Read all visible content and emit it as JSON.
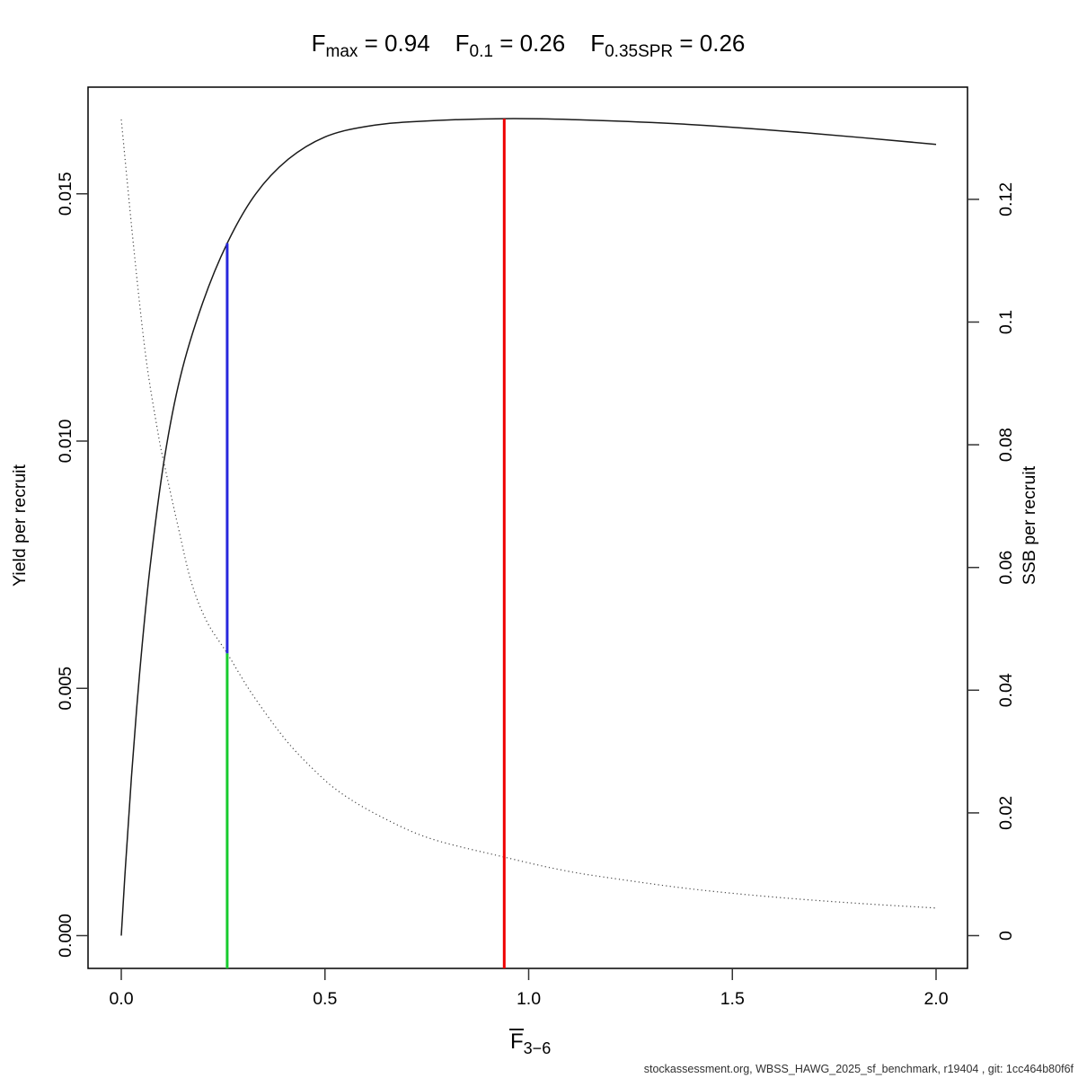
{
  "page": {
    "background": "#ffffff"
  },
  "title": {
    "parts": [
      {
        "base": "F",
        "sub": "max",
        "value": " = 0.94"
      },
      {
        "base": "F",
        "sub": "0.1",
        "value": " = 0.26"
      },
      {
        "base": "F",
        "sub": "0.35SPR",
        "value": " = 0.26"
      }
    ]
  },
  "xlabel": {
    "base": "F",
    "sub": "3−6"
  },
  "footer": {
    "text": "stockassessment.org, WBSS_HAWG_2025_sf_benchmark, r19404 , git: 1cc464b80f6f"
  },
  "chart_data": {
    "type": "line",
    "title": "Fmax = 0.94    F0.1 = 0.26    F0.35SPR = 0.26",
    "xlabel": "F̄3−6",
    "x_axis": {
      "min": 0,
      "max": 2,
      "ticks": [
        0,
        0.5,
        1.0,
        1.5,
        2.0
      ],
      "tick_labels": [
        "0.0",
        "0.5",
        "1.0",
        "1.5",
        "2.0"
      ]
    },
    "y_left": {
      "label": "Yield per recruit",
      "ticks": [
        0,
        0.005,
        0.01,
        0.015
      ],
      "tick_labels": [
        "0.000",
        "0.005",
        "0.010",
        "0.015"
      ],
      "range": [
        0,
        0.01652
      ]
    },
    "y_right": {
      "label": "SSB per recruit",
      "ticks": [
        0,
        0.02,
        0.04,
        0.06,
        0.08,
        0.1,
        0.12
      ],
      "tick_labels": [
        "0",
        "0.02",
        "0.04",
        "0.06",
        "0.08",
        "0.1",
        "0.12"
      ],
      "range": [
        0,
        0.133
      ]
    },
    "reference_points": {
      "Fmax": 0.94,
      "F0.1": 0.26,
      "F0.35SPR": 0.26
    },
    "series": [
      {
        "name": "Yield per recruit",
        "axis": "left",
        "line_style": "solid",
        "color": "#1a1a1a",
        "x": [
          0,
          0.01,
          0.025,
          0.045,
          0.07,
          0.105,
          0.145,
          0.2,
          0.26,
          0.33,
          0.41,
          0.5,
          0.6,
          0.72,
          0.94,
          1.15,
          1.4,
          1.7,
          2.0
        ],
        "y": [
          0,
          0.00135,
          0.0032,
          0.0053,
          0.0074,
          0.0096,
          0.0113,
          0.0128,
          0.014,
          0.015,
          0.0157,
          0.01615,
          0.01636,
          0.01646,
          0.01652,
          0.01649,
          0.0164,
          0.01622,
          0.016
        ]
      },
      {
        "name": "SSB per recruit",
        "axis": "right",
        "line_style": "dotted",
        "color": "#454545",
        "x": [
          0,
          0.03,
          0.06,
          0.09,
          0.105,
          0.14,
          0.172,
          0.21,
          0.26,
          0.32,
          0.4,
          0.47,
          0.54,
          0.64,
          0.76,
          0.94,
          1.08,
          1.2,
          1.4,
          1.6,
          1.8,
          2.0
        ],
        "y": [
          0.133,
          0.1125,
          0.0945,
          0.082,
          0.077,
          0.0665,
          0.0576,
          0.0512,
          0.046,
          0.0395,
          0.0322,
          0.0272,
          0.0232,
          0.0193,
          0.0158,
          0.0128,
          0.0107,
          0.0094,
          0.0076,
          0.0063,
          0.0053,
          0.0045
        ]
      }
    ],
    "ref_lines": [
      {
        "name": "fmax-refline",
        "f": 0.94,
        "color": "#ee0000",
        "top_axis": "left",
        "top_value": 0.01652,
        "bottom_axis": "plot-bottom",
        "bottom_value": null
      },
      {
        "name": "f01-yield-refline",
        "f": 0.26,
        "color": "#2828dd",
        "top_axis": "left",
        "top_value": 0.014,
        "bottom_axis": "right",
        "bottom_value": 0.046
      },
      {
        "name": "f01-ssb-refline",
        "f": 0.26,
        "color": "#17cb2e",
        "top_axis": "right",
        "top_value": 0.046,
        "bottom_axis": "plot-bottom",
        "bottom_value": null
      }
    ]
  }
}
